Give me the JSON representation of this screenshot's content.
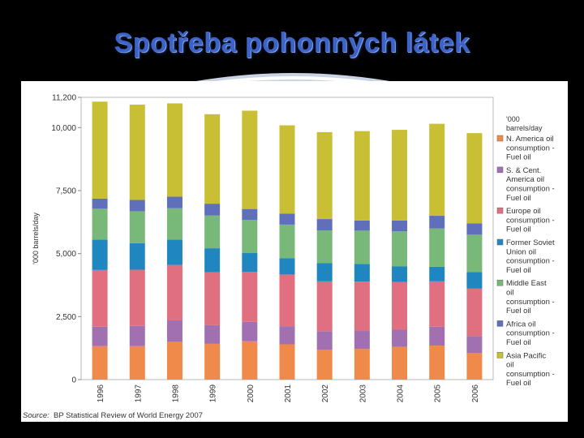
{
  "slide": {
    "title": "Spotřeba pohonných látek"
  },
  "source": {
    "label": "Source:",
    "text": "BP Statistical Review of World Energy 2007"
  },
  "chart_data": {
    "type": "bar",
    "stacked": true,
    "ylabel": "'000 barrels/day",
    "ylim": [
      0,
      11200
    ],
    "yticks": [
      {
        "value": 0,
        "label": "0"
      },
      {
        "value": 2500,
        "label": "2,500"
      },
      {
        "value": 5000,
        "label": "5,000"
      },
      {
        "value": 7500,
        "label": "7,500"
      },
      {
        "value": 10000,
        "label": "10,000"
      },
      {
        "value": 11200,
        "label": "11,200"
      }
    ],
    "categories": [
      "1996",
      "1997",
      "1998",
      "1999",
      "2000",
      "2001",
      "2002",
      "2003",
      "2004",
      "2005",
      "2006"
    ],
    "legend_title": "'000 barrels/day",
    "legend_position": "right",
    "grid": false,
    "series": [
      {
        "name": "N. America oil consumption - Fuel oil",
        "color": "#f08a4b",
        "values": [
          1330,
          1330,
          1500,
          1420,
          1520,
          1400,
          1180,
          1220,
          1300,
          1350,
          1050
        ]
      },
      {
        "name": "S. & Cent. America oil consumption - Fuel oil",
        "color": "#a070b0",
        "values": [
          770,
          800,
          850,
          740,
          770,
          720,
          740,
          710,
          680,
          750,
          680
        ]
      },
      {
        "name": "Europe oil consumption - Fuel oil",
        "color": "#e07080",
        "values": [
          2250,
          2230,
          2200,
          2100,
          1980,
          2050,
          1980,
          1960,
          1890,
          1800,
          1880
        ]
      },
      {
        "name": "Former Soviet Union oil consumption - Fuel oil",
        "color": "#1f86c0",
        "values": [
          1200,
          1050,
          1000,
          950,
          750,
          650,
          720,
          700,
          620,
          580,
          660
        ]
      },
      {
        "name": "Middle East oil consumption - Fuel oil",
        "color": "#78b878",
        "values": [
          1230,
          1270,
          1250,
          1300,
          1320,
          1330,
          1300,
          1320,
          1400,
          1520,
          1480
        ]
      },
      {
        "name": "Africa oil consumption - Fuel oil",
        "color": "#5f6fba",
        "values": [
          400,
          450,
          460,
          470,
          430,
          440,
          450,
          400,
          420,
          500,
          450
        ]
      },
      {
        "name": "Asia Pacific oil consumption - Fuel oil",
        "color": "#c8bf34",
        "values": [
          3850,
          3780,
          3700,
          3550,
          3900,
          3500,
          3450,
          3550,
          3600,
          3650,
          3580
        ]
      }
    ]
  }
}
